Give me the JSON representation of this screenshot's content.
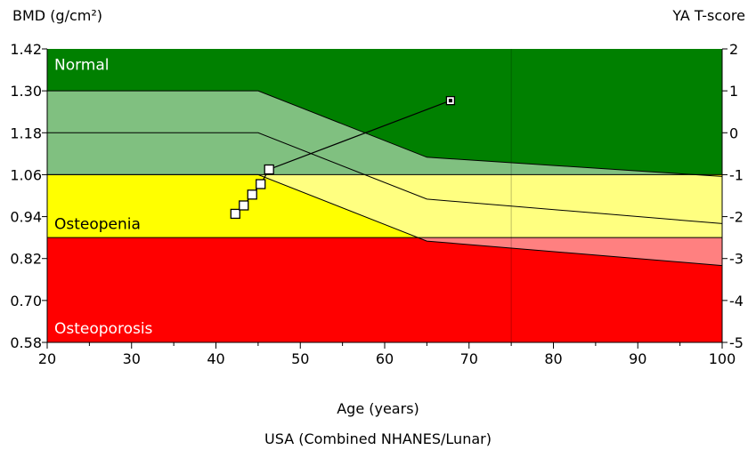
{
  "chart_data": {
    "type": "line",
    "ylabel_left": "BMD (g/cm²)",
    "ylabel_right": "YA T-score",
    "xlabel": "Age (years)",
    "footnote": "USA (Combined NHANES/Lunar)",
    "xlim": [
      20,
      100
    ],
    "ylim": [
      0.58,
      1.42
    ],
    "x_ticks": [
      "20",
      "30",
      "40",
      "50",
      "60",
      "70",
      "80",
      "90",
      "100"
    ],
    "y_ticks_left": [
      "0.58",
      "0.70",
      "0.82",
      "0.94",
      "1.06",
      "1.18",
      "1.30",
      "1.42"
    ],
    "y_tick_values_left": [
      0.58,
      0.7,
      0.82,
      0.94,
      1.06,
      1.18,
      1.3,
      1.42
    ],
    "y_ticks_right": [
      "-5",
      "-4",
      "-3",
      "-2",
      "-1",
      "0",
      "1",
      "2"
    ],
    "y_tick_values_right": [
      0.58,
      0.7,
      0.82,
      0.94,
      1.06,
      1.18,
      1.3,
      1.42
    ],
    "regions": [
      {
        "name": "Normal",
        "ymin": 1.06,
        "ymax": 1.42,
        "color": "#008000"
      },
      {
        "name": "Osteopenia",
        "ymin": 0.88,
        "ymax": 1.06,
        "color": "#ffff00"
      },
      {
        "name": "Osteoporosis",
        "ymin": 0.58,
        "ymax": 0.88,
        "color": "#ff0000"
      }
    ],
    "reference_curves": {
      "upper": {
        "x": [
          20,
          45,
          65,
          100
        ],
        "y": [
          1.3,
          1.3,
          1.11,
          1.055
        ]
      },
      "middle": {
        "x": [
          20,
          45,
          65,
          100
        ],
        "y": [
          1.18,
          1.18,
          0.99,
          0.92
        ]
      },
      "lower": {
        "x": [
          20,
          45,
          65,
          100
        ],
        "y": [
          1.06,
          1.06,
          0.87,
          0.8
        ]
      }
    },
    "band_colors": {
      "normal_light": "#80c080",
      "osteopenia_light": "#ffff80",
      "osteoporosis_light": "#ff8080"
    },
    "series": [
      {
        "x": [
          42.3,
          43.3,
          44.3,
          45.3,
          46.3,
          67.8
        ],
        "y": [
          0.948,
          0.972,
          1.003,
          1.033,
          1.075,
          1.272
        ]
      }
    ],
    "grid": false,
    "vertical_marker_x": 75
  }
}
